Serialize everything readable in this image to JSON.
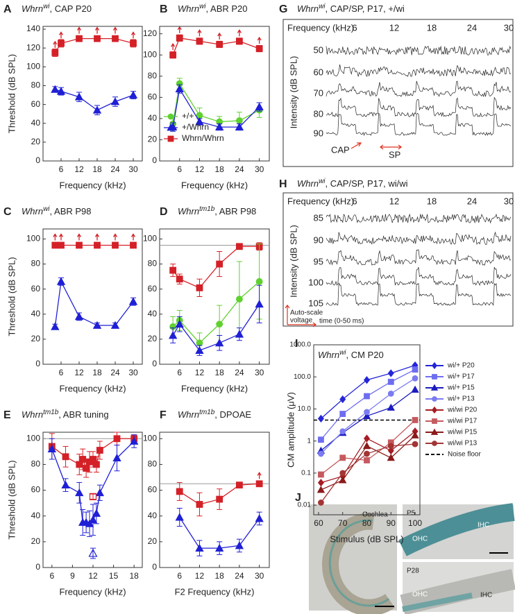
{
  "chart_data": [
    {
      "panel": "A",
      "type": "line",
      "title": {
        "gene": "Whrn",
        "sup": "wi",
        "rest": ", CAP P20"
      },
      "xlabel": "Frequency (kHz)",
      "ylabel": "Threshold (dB SPL)",
      "xlim": [
        0,
        33
      ],
      "xticks": [
        6,
        12,
        18,
        24,
        30
      ],
      "ylim": [
        0,
        143
      ],
      "yticks": [
        0,
        20,
        40,
        60,
        80,
        100,
        120,
        140
      ],
      "series": [
        {
          "color": "#d42027",
          "marker": "square",
          "x": [
            4,
            6,
            12,
            18,
            24,
            30
          ],
          "values": [
            115,
            125,
            130,
            130,
            130,
            125
          ],
          "errors": [
            4,
            4,
            3,
            3,
            3,
            4
          ],
          "arrows": [
            true,
            true,
            true,
            true,
            true,
            true
          ]
        },
        {
          "color": "#1f1fd6",
          "marker": "triangle",
          "x": [
            4,
            6,
            12,
            18,
            24,
            30
          ],
          "values": [
            76,
            74,
            68,
            54,
            63,
            70
          ],
          "errors": [
            3,
            4,
            5,
            5,
            5,
            4
          ]
        }
      ]
    },
    {
      "panel": "B",
      "type": "line",
      "title": {
        "gene": "Whrn",
        "sup": "wi",
        "rest": ", ABR P20"
      },
      "xlabel": "Frequency (kHz)",
      "legend": "left",
      "xlim": [
        0,
        33
      ],
      "xticks": [
        6,
        12,
        18,
        24,
        30
      ],
      "ylim": [
        0,
        127
      ],
      "yticks": [
        0,
        20,
        40,
        60,
        80,
        100,
        120
      ],
      "series": [
        {
          "name": "+/+",
          "color": "#5fd12e",
          "marker": "circle",
          "x": [
            4,
            6,
            12,
            18,
            24,
            30
          ],
          "values": [
            35,
            73,
            43,
            37,
            38,
            48
          ],
          "errors": [
            7,
            5,
            7,
            5,
            8,
            7
          ]
        },
        {
          "name": "+/Whrn",
          "color": "#1f1fd6",
          "marker": "triangle",
          "x": [
            4,
            6,
            12,
            18,
            24,
            30
          ],
          "values": [
            32,
            68,
            37,
            32,
            32,
            51
          ],
          "errors": [
            4,
            4,
            3,
            3,
            3,
            4
          ]
        },
        {
          "name": "Whrn/Whrn",
          "color": "#d42027",
          "marker": "square",
          "x": [
            4,
            6,
            12,
            18,
            24,
            30
          ],
          "values": [
            100,
            116,
            113,
            110,
            113,
            106
          ],
          "errors": [
            3,
            3,
            3,
            3,
            3,
            3
          ],
          "arrows": [
            true,
            true,
            true,
            true,
            true,
            true
          ]
        }
      ]
    },
    {
      "panel": "C",
      "type": "line",
      "title": {
        "gene": "Whrn",
        "sup": "wi",
        "rest": ", ABR P98"
      },
      "xlabel": "Frequency (kHz)",
      "ylabel": "Threshold (dB SPL)",
      "xlim": [
        0,
        33
      ],
      "xticks": [
        6,
        12,
        18,
        24,
        30
      ],
      "ylim": [
        0,
        108
      ],
      "yticks": [
        0,
        20,
        40,
        60,
        80,
        100
      ],
      "series": [
        {
          "color": "#d42027",
          "marker": "square",
          "x": [
            4,
            6,
            12,
            18,
            24,
            30
          ],
          "values": [
            95,
            95,
            95,
            95,
            95,
            95
          ],
          "arrows": [
            true,
            true,
            true,
            true,
            true,
            true
          ]
        },
        {
          "color": "#1f1fd6",
          "marker": "triangle",
          "x": [
            4,
            6,
            12,
            18,
            24,
            30
          ],
          "values": [
            30,
            66,
            38,
            31,
            31,
            50
          ],
          "errors": [
            2,
            3,
            3,
            2,
            2,
            3
          ]
        }
      ]
    },
    {
      "panel": "D",
      "type": "line",
      "title": {
        "gene": "Whrn",
        "sup": "tm1b",
        "rest": ", ABR P98"
      },
      "xlabel": "Frequency (kHz)",
      "hline": {
        "value": 95
      },
      "xlim": [
        0,
        33
      ],
      "xticks": [
        6,
        12,
        18,
        24,
        30
      ],
      "ylim": [
        0,
        108
      ],
      "yticks": [
        0,
        20,
        40,
        60,
        80,
        100
      ],
      "series": [
        {
          "color": "#d42027",
          "marker": "square",
          "x": [
            4,
            6,
            12,
            18,
            24,
            30
          ],
          "values": [
            75,
            68,
            61,
            80,
            94,
            94
          ],
          "errors": [
            5,
            4,
            7,
            10,
            2,
            3
          ]
        },
        {
          "color": "#5fd12e",
          "marker": "circle",
          "x": [
            4,
            6,
            12,
            18,
            24,
            30
          ],
          "values": [
            30,
            35,
            17,
            32,
            52,
            66
          ],
          "errors": [
            8,
            8,
            8,
            15,
            30,
            30
          ]
        },
        {
          "color": "#1f1fd6",
          "marker": "triangle",
          "x": [
            4,
            6,
            12,
            18,
            24,
            30
          ],
          "values": [
            23,
            32,
            11,
            17,
            24,
            48
          ],
          "errors": [
            6,
            6,
            4,
            6,
            5,
            15
          ]
        }
      ]
    },
    {
      "panel": "E",
      "type": "line",
      "title": {
        "gene": "Whrn",
        "sup": "tm1b",
        "rest": ", ABR tuning"
      },
      "xlabel": "Frequency (kHz)",
      "ylabel": "Threshold (dB SPL)",
      "hline": {
        "value": 100
      },
      "xlim": [
        4.7,
        19.2
      ],
      "xticks": [
        6,
        9,
        12,
        15,
        18
      ],
      "ylim": [
        0,
        105
      ],
      "yticks": [
        0,
        20,
        40,
        60,
        80,
        100
      ],
      "series": [
        {
          "color": "#d42027",
          "marker": "square",
          "x": [
            6,
            8,
            10,
            10.5,
            11,
            11.5,
            12,
            12.5,
            13,
            15.5,
            18
          ],
          "values": [
            94,
            86,
            80,
            84,
            77,
            82,
            84,
            80,
            91,
            100,
            100
          ],
          "errors": [
            10,
            8,
            8,
            8,
            7,
            8,
            6,
            6,
            7,
            5,
            3
          ]
        },
        {
          "color": "#1f1fd6",
          "marker": "triangle",
          "x": [
            6,
            8,
            10,
            10.5,
            11,
            11.5,
            12,
            12.5,
            13,
            15.5,
            18
          ],
          "values": [
            92,
            64,
            58,
            35,
            35,
            34,
            37,
            42,
            58,
            85,
            98
          ],
          "errors": [
            8,
            5,
            8,
            10,
            8,
            10,
            12,
            8,
            6,
            10,
            5
          ]
        },
        {
          "color": "#d42027",
          "marker": "square",
          "filled": false,
          "line": false,
          "x": [
            12
          ],
          "values": [
            55
          ],
          "errors": [
            2
          ]
        },
        {
          "color": "#1f1fd6",
          "marker": "triangle",
          "filled": false,
          "line": false,
          "x": [
            12
          ],
          "values": [
            11
          ],
          "errors": [
            4
          ]
        }
      ]
    },
    {
      "panel": "F",
      "type": "line",
      "title": {
        "gene": "Whrn",
        "sup": "tm1b",
        "rest": ", DPOAE"
      },
      "xlabel": "F2 Frequency (kHz)",
      "hline": {
        "value": 65
      },
      "xlim": [
        0,
        33
      ],
      "xticks": [
        6,
        12,
        18,
        24,
        30
      ],
      "ylim": [
        0,
        105
      ],
      "yticks": [
        0,
        20,
        40,
        60,
        80,
        100
      ],
      "series": [
        {
          "color": "#d42027",
          "marker": "square",
          "x": [
            6,
            12,
            18,
            24,
            30
          ],
          "values": [
            59,
            49,
            53,
            64,
            65
          ],
          "errors": [
            7,
            9,
            8,
            2,
            2
          ],
          "arrows": [
            false,
            false,
            false,
            false,
            true
          ]
        },
        {
          "color": "#1f1fd6",
          "marker": "triangle",
          "x": [
            6,
            12,
            18,
            24,
            30
          ],
          "values": [
            39,
            15,
            15,
            17,
            38
          ],
          "errors": [
            7,
            6,
            5,
            5,
            5
          ]
        }
      ]
    },
    {
      "panel": "I",
      "type": "line",
      "title": {
        "gene": "Whrn",
        "sup": "wi",
        "rest": ", CM P20"
      },
      "xlabel": "Stimulus (dB SPL)",
      "ylabel": "CM amplitude (μV)",
      "log_y": true,
      "legend": "right-outside",
      "hline": {
        "value": 4.5,
        "name": "Noise floor",
        "style": "dashed"
      },
      "xlim": [
        58,
        102
      ],
      "xticks": [
        60,
        70,
        80,
        90,
        100
      ],
      "ylim": [
        0.005,
        1000
      ],
      "yticks": [
        0.01,
        0.1,
        1,
        {
          "value": 10,
          "label": "10.0"
        },
        {
          "value": 100,
          "label": "100.0"
        },
        {
          "value": 1000,
          "label": "1000.0"
        }
      ],
      "series": [
        {
          "name": "wi/+ P20",
          "color": "#2525d8",
          "marker": "diamond",
          "x": [
            61,
            70,
            80,
            90,
            100
          ],
          "values": [
            5,
            20,
            80,
            130,
            230
          ]
        },
        {
          "name": "wi/+ P17",
          "color": "#6d6df0",
          "marker": "square",
          "x": [
            61,
            70,
            80,
            90,
            100
          ],
          "values": [
            1.1,
            7,
            25,
            70,
            170
          ]
        },
        {
          "name": "wi/+ P15",
          "color": "#1c1cc0",
          "marker": "triangle",
          "x": [
            61,
            70,
            80,
            90,
            100
          ],
          "values": [
            0.5,
            1.8,
            6,
            11,
            40
          ]
        },
        {
          "name": "wi/+ P13",
          "color": "#7b7bf2",
          "marker": "circle",
          "x": [
            61,
            70,
            80,
            90,
            100
          ],
          "values": [
            0.4,
            2,
            8,
            30,
            90
          ]
        },
        {
          "name": "wi/wi P20",
          "color": "#a51d24",
          "marker": "diamond",
          "x": [
            61,
            70,
            80,
            90,
            100
          ],
          "values": [
            0.05,
            0.08,
            1.2,
            0.5,
            2
          ]
        },
        {
          "name": "wi/wi P17",
          "color": "#c55a5e",
          "marker": "square",
          "x": [
            61,
            70,
            80,
            90,
            100
          ],
          "values": [
            0.09,
            0.3,
            0.25,
            0.9,
            4.5
          ]
        },
        {
          "name": "wi/wi P15",
          "color": "#8b1a1a",
          "marker": "triangle",
          "x": [
            61,
            70,
            80,
            90,
            100
          ],
          "values": [
            0.03,
            0.06,
            0.7,
            0.3,
            1.5
          ]
        },
        {
          "name": "wi/wi P13",
          "color": "#a33535",
          "marker": "circle",
          "x": [
            61,
            70,
            80,
            90,
            100
          ],
          "values": [
            0.012,
            0.1,
            0.4,
            0.7,
            0.8
          ]
        }
      ]
    }
  ],
  "trace_panels": [
    {
      "label": "G",
      "title": {
        "gene": "Whrn",
        "sup": "wi",
        "rest": ", CAP/SP, P17, +/wi"
      },
      "frequency_label": "Frequency (kHz)",
      "frequencies": [
        6,
        12,
        18,
        24,
        30
      ],
      "intensity_label": "Intensity (dB SPL)",
      "intensities": [
        50,
        60,
        70,
        80,
        90
      ],
      "annotations": [
        "CAP",
        "SP"
      ]
    },
    {
      "label": "H",
      "title": {
        "gene": "Whrn",
        "sup": "wi",
        "rest": ", CAP/SP, P17, wi/wi"
      },
      "frequency_label": "Frequency (kHz)",
      "frequencies": [
        6,
        12,
        18,
        24,
        30
      ],
      "intensity_label": "Intensity (dB SPL)",
      "intensities": [
        85,
        90,
        95,
        100,
        105
      ],
      "annotations": [
        "Auto-scale",
        "voltage",
        "time (0-50 ms)"
      ]
    }
  ],
  "image_panel": {
    "label": "J",
    "cochlea": "Cochlea",
    "insets": [
      {
        "age": "P5",
        "labels": [
          "OHC",
          "IHC"
        ]
      },
      {
        "age": "P28",
        "labels": [
          "OHC",
          "IHC"
        ]
      }
    ]
  }
}
